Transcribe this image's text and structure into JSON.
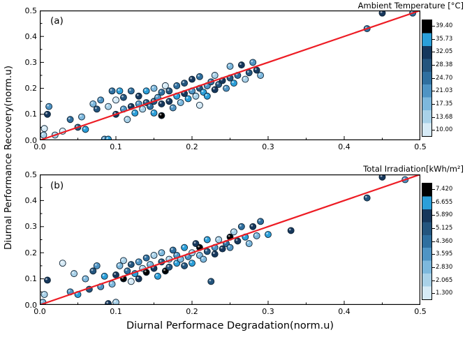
{
  "figure": {
    "xlabel": "Diurnal Performace Degradation(norm.u)",
    "ylabel": "Diurnal Performance Recovery(norm.u)"
  },
  "chart_data": [
    {
      "type": "scatter",
      "panel_label": "(a)",
      "xlim": [
        0,
        0.5
      ],
      "ylim": [
        0,
        0.5
      ],
      "xticks": [
        "0.0",
        "0.1",
        "0.2",
        "0.3",
        "0.4",
        "0.5"
      ],
      "yticks": [
        "0.0",
        "0.1",
        "0.2",
        "0.3",
        "0.4",
        "0.5"
      ],
      "fit_line": {
        "color": "#ed1c24",
        "x": [
          0,
          0.5
        ],
        "y": [
          0,
          0.5
        ]
      },
      "colorbar": {
        "title": "Ambient Temperature [°C]",
        "ticks": [
          "39.40",
          "35.73",
          "32.05",
          "28.38",
          "24.70",
          "21.03",
          "17.35",
          "13.68",
          "10.00"
        ],
        "vmin": 10.0,
        "vmax": 39.4,
        "colors_top_to_bottom": [
          "#000000",
          "#2b9fd9",
          "#16375c",
          "#24557e",
          "#2f6f9f",
          "#4f94c4",
          "#7db8dd",
          "#a9d1e8",
          "#d6eaf6"
        ]
      },
      "points": [
        [
          0.005,
          0.02,
          14
        ],
        [
          0.006,
          0.045,
          12
        ],
        [
          0.01,
          0.1,
          30
        ],
        [
          0.012,
          0.13,
          22
        ],
        [
          0.02,
          0.02,
          15
        ],
        [
          0.03,
          0.035,
          13
        ],
        [
          0.04,
          0.08,
          24
        ],
        [
          0.05,
          0.05,
          28
        ],
        [
          0.055,
          0.09,
          18
        ],
        [
          0.06,
          0.042,
          33
        ],
        [
          0.07,
          0.14,
          19
        ],
        [
          0.075,
          0.12,
          27
        ],
        [
          0.08,
          0.155,
          23
        ],
        [
          0.085,
          0.004,
          20
        ],
        [
          0.09,
          0.004,
          35
        ],
        [
          0.09,
          0.13,
          16
        ],
        [
          0.095,
          0.19,
          25
        ],
        [
          0.1,
          0.1,
          30
        ],
        [
          0.1,
          0.155,
          12
        ],
        [
          0.105,
          0.19,
          34
        ],
        [
          0.11,
          0.12,
          22
        ],
        [
          0.11,
          0.165,
          28
        ],
        [
          0.115,
          0.08,
          15
        ],
        [
          0.12,
          0.13,
          32
        ],
        [
          0.12,
          0.19,
          26
        ],
        [
          0.125,
          0.105,
          36
        ],
        [
          0.13,
          0.14,
          20
        ],
        [
          0.13,
          0.17,
          31
        ],
        [
          0.135,
          0.12,
          14
        ],
        [
          0.14,
          0.145,
          27
        ],
        [
          0.14,
          0.19,
          33
        ],
        [
          0.145,
          0.13,
          24
        ],
        [
          0.15,
          0.15,
          29
        ],
        [
          0.15,
          0.2,
          18
        ],
        [
          0.15,
          0.105,
          35
        ],
        [
          0.155,
          0.165,
          22
        ],
        [
          0.16,
          0.14,
          30
        ],
        [
          0.16,
          0.095,
          37
        ],
        [
          0.16,
          0.185,
          26
        ],
        [
          0.165,
          0.21,
          13
        ],
        [
          0.17,
          0.15,
          32
        ],
        [
          0.17,
          0.19,
          28
        ],
        [
          0.175,
          0.125,
          21
        ],
        [
          0.18,
          0.17,
          34
        ],
        [
          0.18,
          0.21,
          25
        ],
        [
          0.185,
          0.145,
          17
        ],
        [
          0.19,
          0.18,
          30
        ],
        [
          0.19,
          0.22,
          27
        ],
        [
          0.195,
          0.16,
          36
        ],
        [
          0.2,
          0.19,
          23
        ],
        [
          0.2,
          0.235,
          31
        ],
        [
          0.205,
          0.17,
          15
        ],
        [
          0.21,
          0.135,
          12
        ],
        [
          0.21,
          0.2,
          29
        ],
        [
          0.21,
          0.245,
          26
        ],
        [
          0.215,
          0.185,
          33
        ],
        [
          0.22,
          0.21,
          20
        ],
        [
          0.22,
          0.17,
          35
        ],
        [
          0.225,
          0.225,
          24
        ],
        [
          0.23,
          0.195,
          30
        ],
        [
          0.23,
          0.25,
          16
        ],
        [
          0.235,
          0.215,
          28
        ],
        [
          0.24,
          0.23,
          32
        ],
        [
          0.245,
          0.2,
          22
        ],
        [
          0.25,
          0.24,
          27
        ],
        [
          0.25,
          0.285,
          19
        ],
        [
          0.255,
          0.22,
          34
        ],
        [
          0.26,
          0.25,
          25
        ],
        [
          0.265,
          0.29,
          30
        ],
        [
          0.27,
          0.235,
          14
        ],
        [
          0.275,
          0.26,
          28
        ],
        [
          0.28,
          0.3,
          23
        ],
        [
          0.285,
          0.27,
          31
        ],
        [
          0.29,
          0.25,
          18
        ],
        [
          0.43,
          0.43,
          26
        ],
        [
          0.45,
          0.49,
          31
        ],
        [
          0.49,
          0.49,
          24
        ]
      ]
    },
    {
      "type": "scatter",
      "panel_label": "(b)",
      "xlim": [
        0,
        0.5
      ],
      "ylim": [
        0,
        0.5
      ],
      "xticks": [
        "0.0",
        "0.1",
        "0.2",
        "0.3",
        "0.4",
        "0.5"
      ],
      "yticks": [
        "0.0",
        "0.1",
        "0.2",
        "0.3",
        "0.4",
        "0.5"
      ],
      "fit_line": {
        "color": "#ed1c24",
        "x": [
          0,
          0.5
        ],
        "y": [
          0,
          0.5
        ]
      },
      "colorbar": {
        "title": "Total Irradiation[kWh/m²]",
        "ticks": [
          "7.420",
          "6.655",
          "5.890",
          "5.125",
          "4.360",
          "3.595",
          "2.830",
          "2.065",
          "1.300"
        ],
        "vmin": 1.3,
        "vmax": 7.42,
        "colors_top_to_bottom": [
          "#000000",
          "#2b9fd9",
          "#16375c",
          "#24557e",
          "#2f6f9f",
          "#4f94c4",
          "#7db8dd",
          "#a9d1e8",
          "#d6eaf6"
        ]
      },
      "points": [
        [
          0.004,
          0.01,
          3.0
        ],
        [
          0.006,
          0.04,
          2.2
        ],
        [
          0.01,
          0.095,
          5.5
        ],
        [
          0.03,
          0.16,
          1.8
        ],
        [
          0.04,
          0.05,
          4.0
        ],
        [
          0.045,
          0.12,
          2.5
        ],
        [
          0.05,
          0.04,
          6.5
        ],
        [
          0.06,
          0.1,
          2.8
        ],
        [
          0.065,
          0.06,
          5.2
        ],
        [
          0.07,
          0.13,
          5.0
        ],
        [
          0.075,
          0.15,
          3.9
        ],
        [
          0.08,
          0.07,
          3.4
        ],
        [
          0.085,
          0.11,
          6.1
        ],
        [
          0.09,
          0.005,
          6.0
        ],
        [
          0.095,
          0.08,
          2.9
        ],
        [
          0.1,
          0.01,
          2.4
        ],
        [
          0.1,
          0.115,
          5.8
        ],
        [
          0.105,
          0.15,
          3.1
        ],
        [
          0.11,
          0.1,
          6.8
        ],
        [
          0.11,
          0.17,
          2.5
        ],
        [
          0.115,
          0.13,
          4.5
        ],
        [
          0.12,
          0.155,
          5.2
        ],
        [
          0.12,
          0.09,
          1.9
        ],
        [
          0.125,
          0.12,
          6.2
        ],
        [
          0.13,
          0.165,
          3.8
        ],
        [
          0.13,
          0.1,
          5.6
        ],
        [
          0.135,
          0.14,
          2.2
        ],
        [
          0.14,
          0.125,
          6.9
        ],
        [
          0.14,
          0.18,
          4.2
        ],
        [
          0.145,
          0.155,
          3.0
        ],
        [
          0.15,
          0.14,
          5.9
        ],
        [
          0.15,
          0.19,
          2.6
        ],
        [
          0.155,
          0.11,
          6.4
        ],
        [
          0.16,
          0.165,
          4.8
        ],
        [
          0.16,
          0.2,
          3.3
        ],
        [
          0.165,
          0.13,
          7.0
        ],
        [
          0.17,
          0.175,
          2.0
        ],
        [
          0.17,
          0.145,
          5.3
        ],
        [
          0.175,
          0.21,
          4.4
        ],
        [
          0.18,
          0.16,
          6.6
        ],
        [
          0.18,
          0.19,
          3.6
        ],
        [
          0.185,
          0.175,
          2.9
        ],
        [
          0.19,
          0.15,
          5.0
        ],
        [
          0.19,
          0.22,
          6.1
        ],
        [
          0.195,
          0.185,
          4.0
        ],
        [
          0.2,
          0.2,
          2.3
        ],
        [
          0.2,
          0.16,
          6.7
        ],
        [
          0.205,
          0.235,
          5.4
        ],
        [
          0.21,
          0.19,
          3.2
        ],
        [
          0.21,
          0.22,
          7.1
        ],
        [
          0.215,
          0.175,
          2.7
        ],
        [
          0.22,
          0.205,
          4.9
        ],
        [
          0.22,
          0.25,
          6.3
        ],
        [
          0.225,
          0.09,
          5.1
        ],
        [
          0.23,
          0.22,
          3.9
        ],
        [
          0.23,
          0.195,
          6.0
        ],
        [
          0.235,
          0.25,
          2.4
        ],
        [
          0.24,
          0.215,
          5.7
        ],
        [
          0.245,
          0.235,
          4.3
        ],
        [
          0.25,
          0.26,
          6.8
        ],
        [
          0.25,
          0.22,
          3.5
        ],
        [
          0.255,
          0.28,
          2.1
        ],
        [
          0.26,
          0.245,
          5.5
        ],
        [
          0.265,
          0.3,
          4.6
        ],
        [
          0.27,
          0.26,
          6.2
        ],
        [
          0.275,
          0.235,
          3.0
        ],
        [
          0.28,
          0.3,
          5.8
        ],
        [
          0.285,
          0.265,
          2.8
        ],
        [
          0.29,
          0.32,
          4.1
        ],
        [
          0.3,
          0.27,
          6.5
        ],
        [
          0.33,
          0.285,
          5.9
        ],
        [
          0.43,
          0.41,
          4.7
        ],
        [
          0.45,
          0.49,
          6.0
        ],
        [
          0.48,
          0.48,
          3.7
        ]
      ]
    }
  ]
}
